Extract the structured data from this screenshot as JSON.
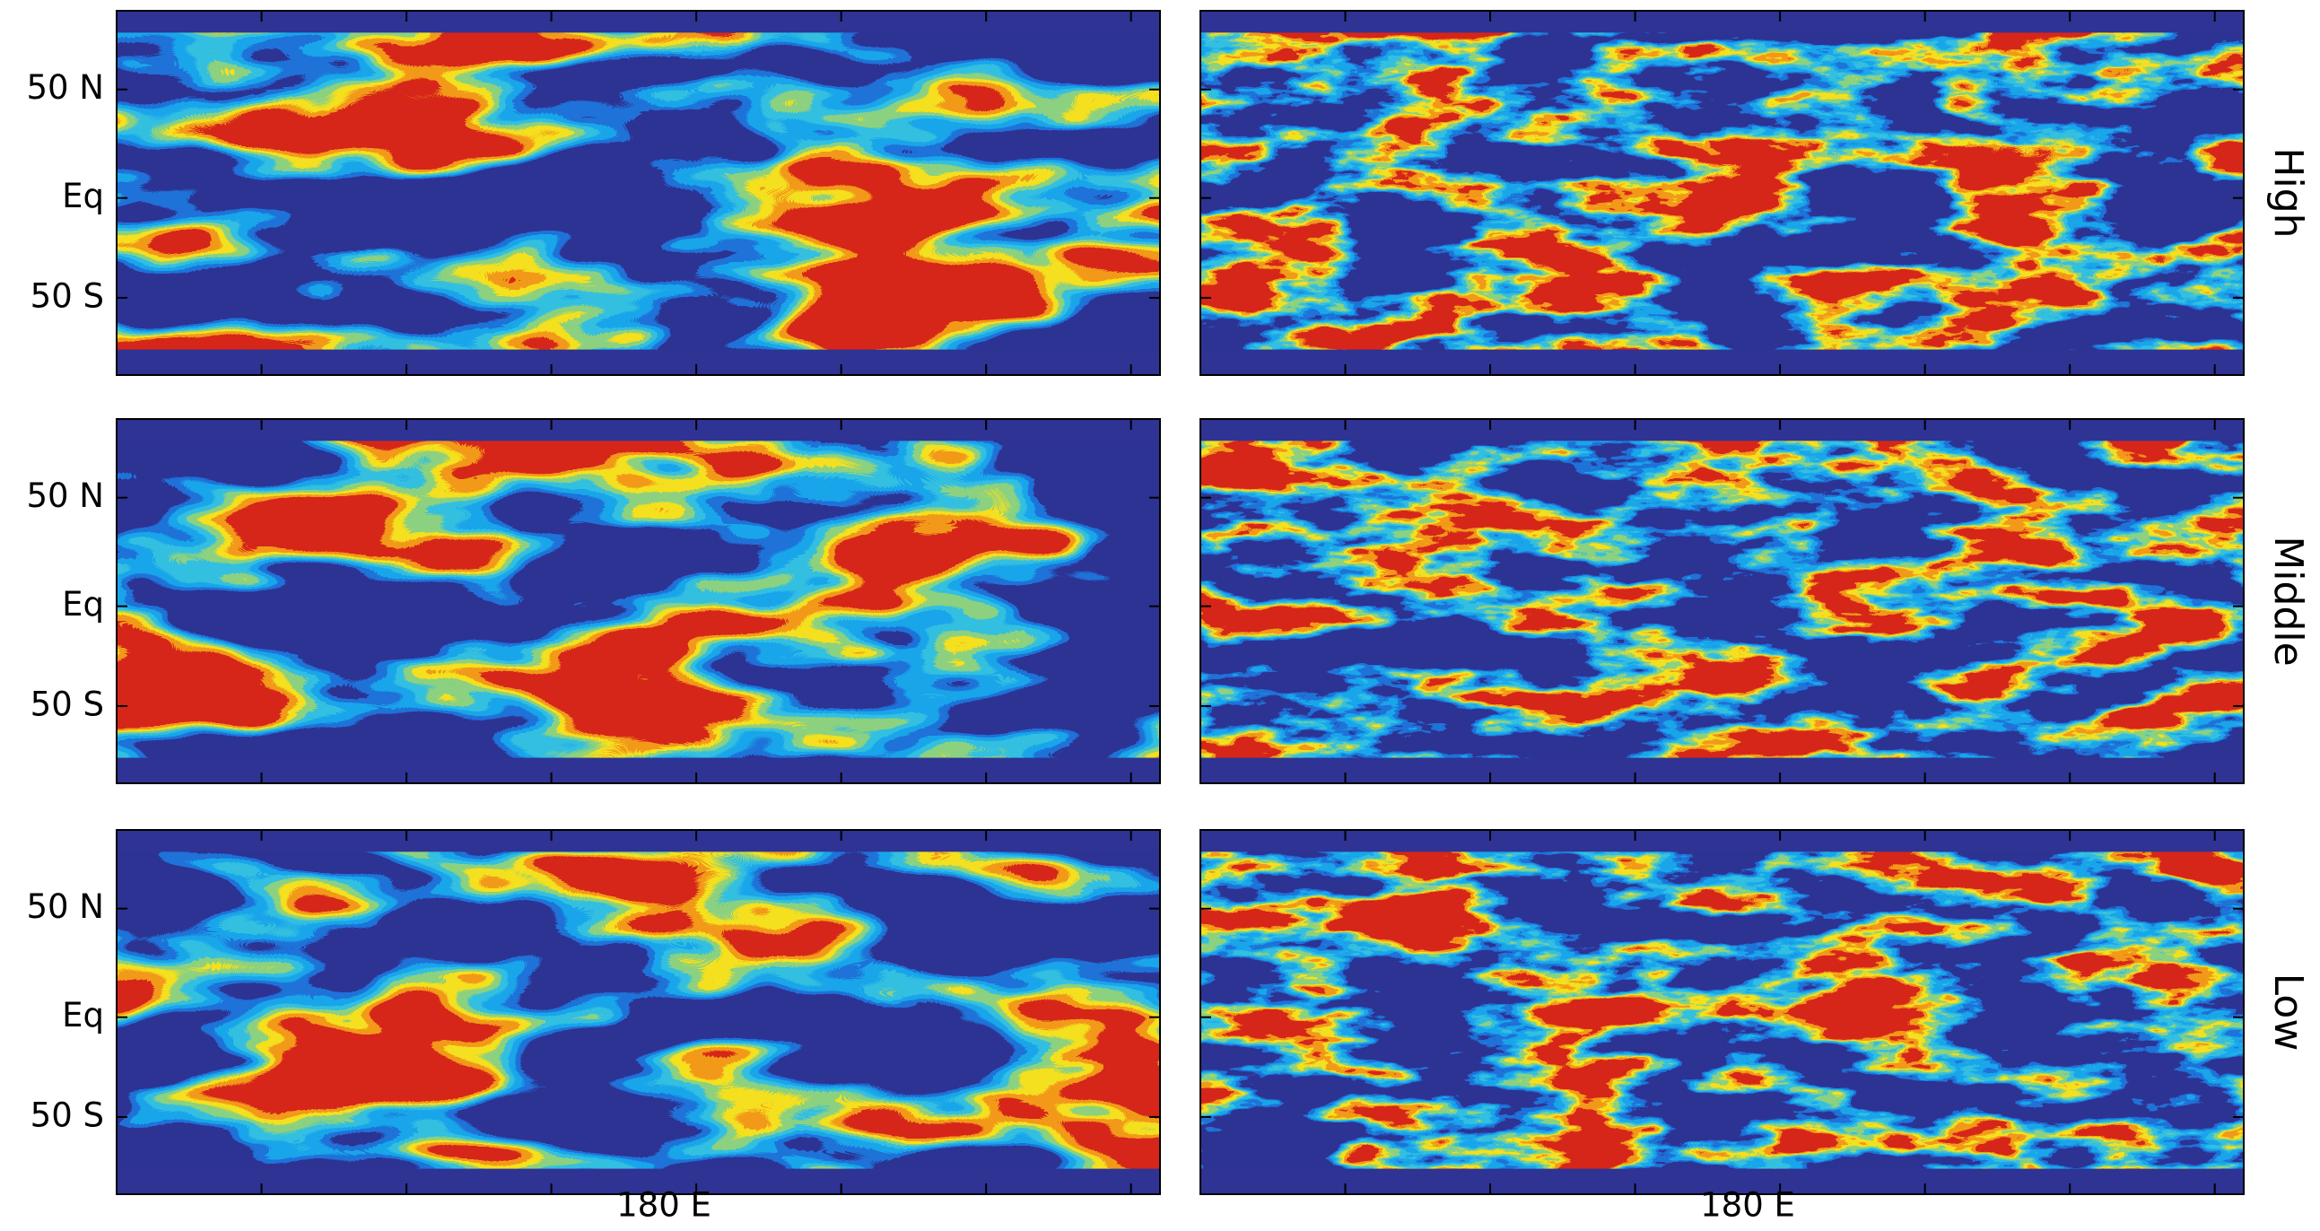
{
  "figure": {
    "row_labels": [
      "High",
      "Middle",
      "Low"
    ],
    "y_tick_labels": [
      "50 N",
      "Eq",
      "50 S"
    ],
    "x_tick_label": "180 E"
  }
}
